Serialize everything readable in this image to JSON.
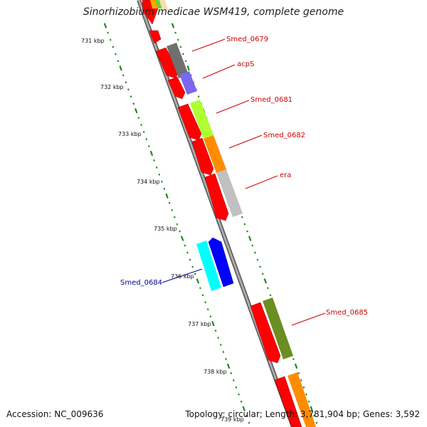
{
  "title": "Sinorhizobium medicae WSM419, complete genome",
  "footer": {
    "accession": "Accession: NC_009636",
    "topology": "Topology: circular; Length: 3,781,904 bp; Genes: 3,592"
  },
  "ticks": [
    "731 kbp",
    "732 kbp",
    "733 kbp",
    "734 kbp",
    "735 kbp",
    "736 kbp",
    "737 kbp",
    "738 kbp",
    "739 kbp"
  ],
  "genes": [
    {
      "label": "",
      "color": "#ff0000",
      "strand": "reverse"
    },
    {
      "label": "Smed_0679",
      "color": "#ff0000",
      "strand": "reverse",
      "cog_color": "#6f6f6f"
    },
    {
      "label": "acpS",
      "color": "#ff0000",
      "strand": "reverse",
      "cog_color": "#7b68ee"
    },
    {
      "label": "Smed_0681",
      "color": "#ff0000",
      "strand": "reverse",
      "cog_color": "#adff2f"
    },
    {
      "label": "Smed_0682",
      "color": "#ff0000",
      "strand": "reverse",
      "cog_color": "#ff8c00"
    },
    {
      "label": "era",
      "color": "#ff0000",
      "strand": "reverse",
      "cog_color": "#c0c0c0"
    },
    {
      "label": "Smed_0684",
      "color": "#0000ff",
      "strand": "forward",
      "cog_color": "#00ffff"
    },
    {
      "label": "Smed_0685",
      "color": "#ff0000",
      "strand": "reverse",
      "cog_color": "#6b8e23"
    },
    {
      "label": "",
      "color": "#ff0000",
      "strand": "reverse",
      "cog_color": "#ff8c00"
    }
  ],
  "colors": {
    "backbone": "#8a8a8a",
    "gc_ticks": "#1a8a1a",
    "label_red": "#cc0000",
    "label_blue": "#000099"
  }
}
